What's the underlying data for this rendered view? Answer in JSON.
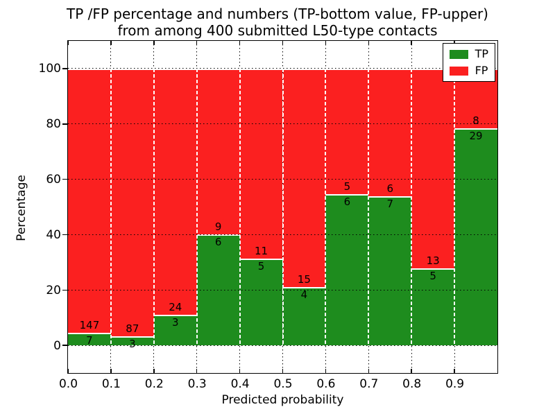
{
  "title": {
    "line1": "TP /FP percentage and numbers (TP-bottom value, FP-upper)",
    "line2": "from among 400 submitted L50-type contacts"
  },
  "chart_data": {
    "type": "bar",
    "stacked": true,
    "normalized": "each bin scaled to 100%",
    "title": "TP /FP percentage and numbers (TP-bottom value, FP-upper) from among 400 submitted L50-type contacts",
    "xlabel": "Predicted probability",
    "ylabel": "Percentage",
    "total_contacts": 400,
    "xlim": [
      0.0,
      1.0
    ],
    "ylim": [
      -10,
      110
    ],
    "grid": true,
    "bin_width": 0.1,
    "bin_starts": [
      0.0,
      0.1,
      0.2,
      0.3,
      0.4,
      0.5,
      0.6,
      0.7,
      0.8,
      0.9
    ],
    "x_ticks": [
      "0.0",
      "0.1",
      "0.2",
      "0.3",
      "0.4",
      "0.5",
      "0.6",
      "0.7",
      "0.8",
      "0.9"
    ],
    "y_ticks": [
      0,
      20,
      40,
      60,
      80,
      100
    ],
    "series": [
      {
        "name": "TP",
        "color": "#1e8c1e",
        "counts": [
          7,
          3,
          3,
          6,
          5,
          4,
          6,
          7,
          5,
          29
        ]
      },
      {
        "name": "FP",
        "color": "#fb2020",
        "counts": [
          147,
          87,
          24,
          9,
          11,
          15,
          5,
          6,
          13,
          8
        ]
      }
    ],
    "tp_percent_of_bin": [
      4.5,
      3.3,
      11.1,
      40.0,
      31.2,
      21.1,
      54.5,
      53.8,
      27.8,
      78.4
    ],
    "legend": {
      "position": "upper right",
      "entries": [
        {
          "label": "TP",
          "color": "#1e8c1e"
        },
        {
          "label": "FP",
          "color": "#fb2020"
        }
      ]
    },
    "bar_edge_color": "#ffffff",
    "axis_color": "#000000"
  }
}
